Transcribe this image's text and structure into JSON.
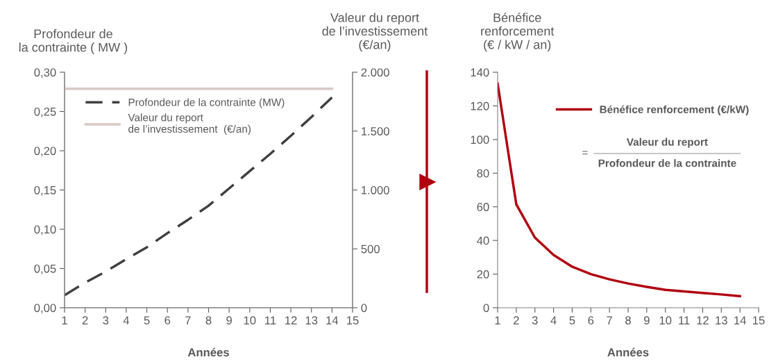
{
  "chart_data": [
    {
      "type": "line",
      "xlabel": "Années",
      "ylabel": "Profondeur de\nla contrainte ( MW )",
      "y2label": "Valeur du report\nde l’investissement\n(€/an)",
      "x": [
        1,
        2,
        3,
        4,
        5,
        6,
        7,
        8,
        9,
        10,
        11,
        12,
        13,
        14
      ],
      "xlim": [
        1,
        15
      ],
      "xticks": [
        1,
        2,
        3,
        4,
        5,
        6,
        7,
        8,
        9,
        10,
        11,
        12,
        13,
        14,
        15
      ],
      "ylim": [
        0,
        0.3
      ],
      "yticks": [
        {
          "value": 0,
          "label": "0,00"
        },
        {
          "value": 0.05,
          "label": "0,05"
        },
        {
          "value": 0.1,
          "label": "0,10"
        },
        {
          "value": 0.15,
          "label": "0,15"
        },
        {
          "value": 0.2,
          "label": "0,20"
        },
        {
          "value": 0.25,
          "label": "0,25"
        },
        {
          "value": 0.3,
          "label": "0,30"
        }
      ],
      "y2lim": [
        0,
        2000
      ],
      "y2ticks": [
        0,
        500,
        {
          "value": 1000,
          "label": "1.000"
        },
        {
          "value": 1500,
          "label": "1.500"
        },
        {
          "value": 2000,
          "label": "2.000"
        }
      ],
      "legend": "top left",
      "grid": false,
      "series": [
        {
          "name": "Profondeur de la contrainte (MW)",
          "color": "#404040",
          "line_style": "dashed",
          "values": [
            0.016,
            0.032,
            0.046,
            0.062,
            0.077,
            0.095,
            0.112,
            0.13,
            0.152,
            0.174,
            0.196,
            0.219,
            0.243,
            0.268
          ]
        },
        {
          "name": "Valeur du report\nde l’investissement  (€/an)",
          "color": "#d9c9c4",
          "axis": "y2",
          "line_style": "solid",
          "values": [
            1860,
            1860,
            1860,
            1860,
            1860,
            1860,
            1860,
            1860,
            1860,
            1860,
            1860,
            1860,
            1860,
            1860
          ]
        }
      ]
    },
    {
      "type": "line",
      "xlabel": "Années",
      "ylabel": "Bénéfice\nrenforcement\n(€ / kW / an)",
      "x": [
        1,
        2,
        3,
        4,
        5,
        6,
        7,
        8,
        9,
        10,
        11,
        12,
        13,
        14
      ],
      "xlim": [
        1,
        15
      ],
      "xticks": [
        1,
        2,
        3,
        4,
        5,
        6,
        7,
        8,
        9,
        10,
        11,
        12,
        13,
        14,
        15
      ],
      "ylim": [
        0,
        140
      ],
      "yticks": [
        0,
        20,
        40,
        60,
        80,
        100,
        120,
        140
      ],
      "legend": "top right",
      "grid": false,
      "annotations": [
        "=",
        "Valeur du report",
        "Profondeur de la contrainte"
      ],
      "series": [
        {
          "name": "Bénéfice renforcement (€/kW)",
          "color": "#b0000f",
          "line_style": "solid",
          "values": [
            133.3,
            61.5,
            41.7,
            31.4,
            24.4,
            20.0,
            16.9,
            14.4,
            12.4,
            10.6,
            9.7,
            8.8,
            7.9,
            6.9
          ]
        }
      ]
    }
  ]
}
